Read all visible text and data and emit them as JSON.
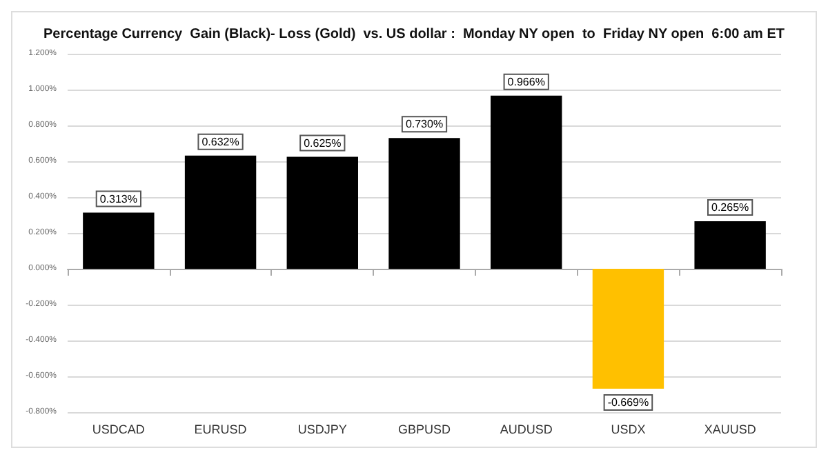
{
  "chart_data": {
    "type": "bar",
    "title": "Percentage Currency  Gain (Black)- Loss (Gold)  vs. US dollar :  Monday NY open  to  Friday NY open  6:00 am ET",
    "categories": [
      "USDCAD",
      "EURUSD",
      "USDJPY",
      "GBPUSD",
      "AUDUSD",
      "USDX",
      "XAUUSD"
    ],
    "values": [
      0.313,
      0.632,
      0.625,
      0.73,
      0.966,
      -0.669,
      0.265
    ],
    "colors": [
      "#000000",
      "#000000",
      "#000000",
      "#000000",
      "#000000",
      "#ffc000",
      "#000000"
    ],
    "value_labels": [
      "0.313%",
      "0.632%",
      "0.625%",
      "0.730%",
      "0.966%",
      "-0.669%",
      "0.265%"
    ],
    "ylim": [
      -0.8,
      1.2
    ],
    "yticks": [
      {
        "value": -0.8,
        "label": "-0.800%"
      },
      {
        "value": -0.6,
        "label": "-0.600%"
      },
      {
        "value": -0.4,
        "label": "-0.400%"
      },
      {
        "value": -0.2,
        "label": "-0.200%"
      },
      {
        "value": 0,
        "label": "0.000%"
      },
      {
        "value": 0.2,
        "label": "0.200%"
      },
      {
        "value": 0.4,
        "label": "0.400%"
      },
      {
        "value": 0.6,
        "label": "0.600%"
      },
      {
        "value": 0.8,
        "label": "0.800%"
      },
      {
        "value": 1.0,
        "label": "1.000%"
      },
      {
        "value": 1.2,
        "label": "1.200%"
      }
    ],
    "grid": "y"
  }
}
